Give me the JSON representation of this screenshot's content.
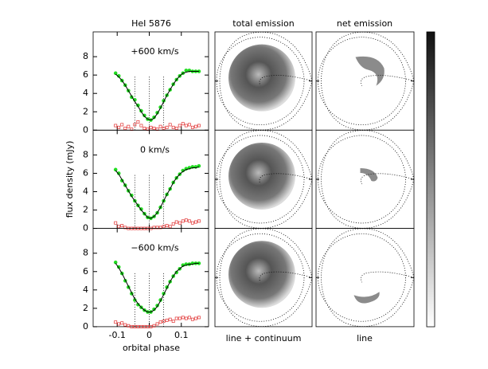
{
  "titles": {
    "left": "HeI 5876",
    "middle": "total emission",
    "right": "net emission"
  },
  "footers": {
    "middle": "line + continuum",
    "right": "line"
  },
  "xlabel": "orbital phase",
  "ylabel": "flux density (mJy)",
  "chart_data": [
    {
      "type": "scatter",
      "annotation": "+600 km/s",
      "x": [
        -0.105,
        -0.095,
        -0.085,
        -0.075,
        -0.065,
        -0.055,
        -0.045,
        -0.035,
        -0.025,
        -0.015,
        -0.005,
        0.005,
        0.015,
        0.025,
        0.035,
        0.045,
        0.055,
        0.065,
        0.075,
        0.085,
        0.095,
        0.105,
        0.115,
        0.125,
        0.135,
        0.145,
        0.155
      ],
      "series": [
        {
          "color": "#22dd22",
          "marker": "circle",
          "values": [
            6.2,
            5.9,
            5.4,
            4.9,
            4.3,
            3.6,
            3.3,
            2.7,
            2.1,
            1.6,
            1.2,
            1.1,
            1.4,
            1.9,
            2.5,
            3.2,
            3.8,
            4.4,
            5.0,
            5.5,
            5.9,
            6.2,
            6.5,
            6.5,
            6.4,
            6.4,
            6.4
          ]
        },
        {
          "color": "#000000",
          "marker": "line",
          "values": [
            6.1,
            5.8,
            5.4,
            4.9,
            4.3,
            3.7,
            3.1,
            2.6,
            2.0,
            1.5,
            1.2,
            1.1,
            1.3,
            1.8,
            2.4,
            3.1,
            3.8,
            4.4,
            5.0,
            5.5,
            5.9,
            6.2,
            6.3,
            6.4,
            6.4,
            6.4,
            6.4
          ]
        },
        {
          "color": "#e03030",
          "marker": "square",
          "values": [
            0.5,
            0.3,
            0.6,
            0.2,
            0.4,
            0.1,
            0.6,
            0.9,
            0.5,
            0.2,
            0.1,
            0.3,
            0.2,
            0.1,
            0.4,
            0.2,
            0.3,
            0.6,
            0.3,
            0.2,
            0.5,
            0.7,
            0.5,
            0.6,
            0.3,
            0.4,
            0.5
          ]
        }
      ],
      "vlines": [
        -0.045,
        0,
        0.045
      ],
      "xlim": [
        -0.175,
        0.185
      ],
      "xticks": [
        -0.1,
        0,
        0.1
      ],
      "ylim": [
        0,
        10.7
      ],
      "yticks": [
        0,
        2,
        4,
        6,
        8
      ]
    },
    {
      "type": "scatter",
      "annotation": "0 km/s",
      "x": [
        -0.105,
        -0.095,
        -0.085,
        -0.075,
        -0.065,
        -0.055,
        -0.045,
        -0.035,
        -0.025,
        -0.015,
        -0.005,
        0.005,
        0.015,
        0.025,
        0.035,
        0.045,
        0.055,
        0.065,
        0.075,
        0.085,
        0.095,
        0.105,
        0.115,
        0.125,
        0.135,
        0.145,
        0.155
      ],
      "series": [
        {
          "color": "#22dd22",
          "marker": "circle",
          "values": [
            6.4,
            6.0,
            5.2,
            4.7,
            4.1,
            3.6,
            3.0,
            2.5,
            2.1,
            1.6,
            1.2,
            1.1,
            1.3,
            1.7,
            2.3,
            3.0,
            3.7,
            4.3,
            5.0,
            5.5,
            5.9,
            6.3,
            6.5,
            6.6,
            6.7,
            6.7,
            6.8
          ]
        },
        {
          "color": "#000000",
          "marker": "line",
          "values": [
            6.3,
            5.9,
            5.3,
            4.7,
            4.1,
            3.5,
            3.0,
            2.5,
            2.0,
            1.6,
            1.2,
            1.1,
            1.3,
            1.7,
            2.3,
            3.0,
            3.7,
            4.3,
            5.0,
            5.5,
            5.9,
            6.2,
            6.4,
            6.5,
            6.6,
            6.6,
            6.7
          ]
        },
        {
          "color": "#e03030",
          "marker": "square",
          "values": [
            0.6,
            0.2,
            0.3,
            0.1,
            0.0,
            0.0,
            0.0,
            0.0,
            0.0,
            0.0,
            0.0,
            0.0,
            0.1,
            0.1,
            0.1,
            0.2,
            0.3,
            0.2,
            0.5,
            0.7,
            0.6,
            0.8,
            0.9,
            0.8,
            0.6,
            0.7,
            0.8
          ]
        }
      ],
      "vlines": [
        -0.045,
        0,
        0.045
      ],
      "xlim": [
        -0.175,
        0.185
      ],
      "xticks": [
        -0.1,
        0,
        0.1
      ],
      "ylim": [
        0,
        10.7
      ],
      "yticks": [
        0,
        2,
        4,
        6,
        8
      ]
    },
    {
      "type": "scatter",
      "annotation": "−600 km/s",
      "x": [
        -0.105,
        -0.095,
        -0.085,
        -0.075,
        -0.065,
        -0.055,
        -0.045,
        -0.035,
        -0.025,
        -0.015,
        -0.005,
        0.005,
        0.015,
        0.025,
        0.035,
        0.045,
        0.055,
        0.065,
        0.075,
        0.085,
        0.095,
        0.105,
        0.115,
        0.125,
        0.135,
        0.145,
        0.155
      ],
      "series": [
        {
          "color": "#22dd22",
          "marker": "circle",
          "values": [
            7.0,
            6.5,
            5.8,
            5.0,
            4.3,
            3.6,
            2.9,
            2.4,
            2.1,
            1.8,
            1.6,
            1.6,
            1.9,
            2.3,
            2.9,
            3.6,
            4.3,
            4.9,
            5.5,
            5.9,
            6.3,
            6.7,
            6.8,
            6.8,
            6.9,
            6.9,
            6.9
          ]
        },
        {
          "color": "#000000",
          "marker": "line",
          "values": [
            6.9,
            6.4,
            5.8,
            5.1,
            4.4,
            3.7,
            3.0,
            2.5,
            2.1,
            1.8,
            1.6,
            1.6,
            1.8,
            2.2,
            2.8,
            3.5,
            4.2,
            4.9,
            5.5,
            6.0,
            6.3,
            6.6,
            6.7,
            6.8,
            6.8,
            6.9,
            6.9
          ]
        },
        {
          "color": "#e03030",
          "marker": "square",
          "values": [
            0.5,
            0.3,
            0.4,
            0.2,
            0.1,
            0.0,
            0.0,
            0.0,
            0.0,
            0.0,
            0.0,
            0.0,
            0.1,
            0.3,
            0.5,
            0.6,
            0.7,
            0.8,
            0.6,
            0.9,
            0.9,
            1.0,
            0.9,
            1.0,
            0.8,
            0.9,
            1.0
          ]
        }
      ],
      "vlines": [
        -0.045,
        0,
        0.045
      ],
      "xlim": [
        -0.175,
        0.185
      ],
      "xticks": [
        -0.1,
        0,
        0.1
      ],
      "ylim": [
        0,
        10.7
      ],
      "yticks": [
        0,
        2,
        4,
        6,
        8
      ]
    }
  ]
}
